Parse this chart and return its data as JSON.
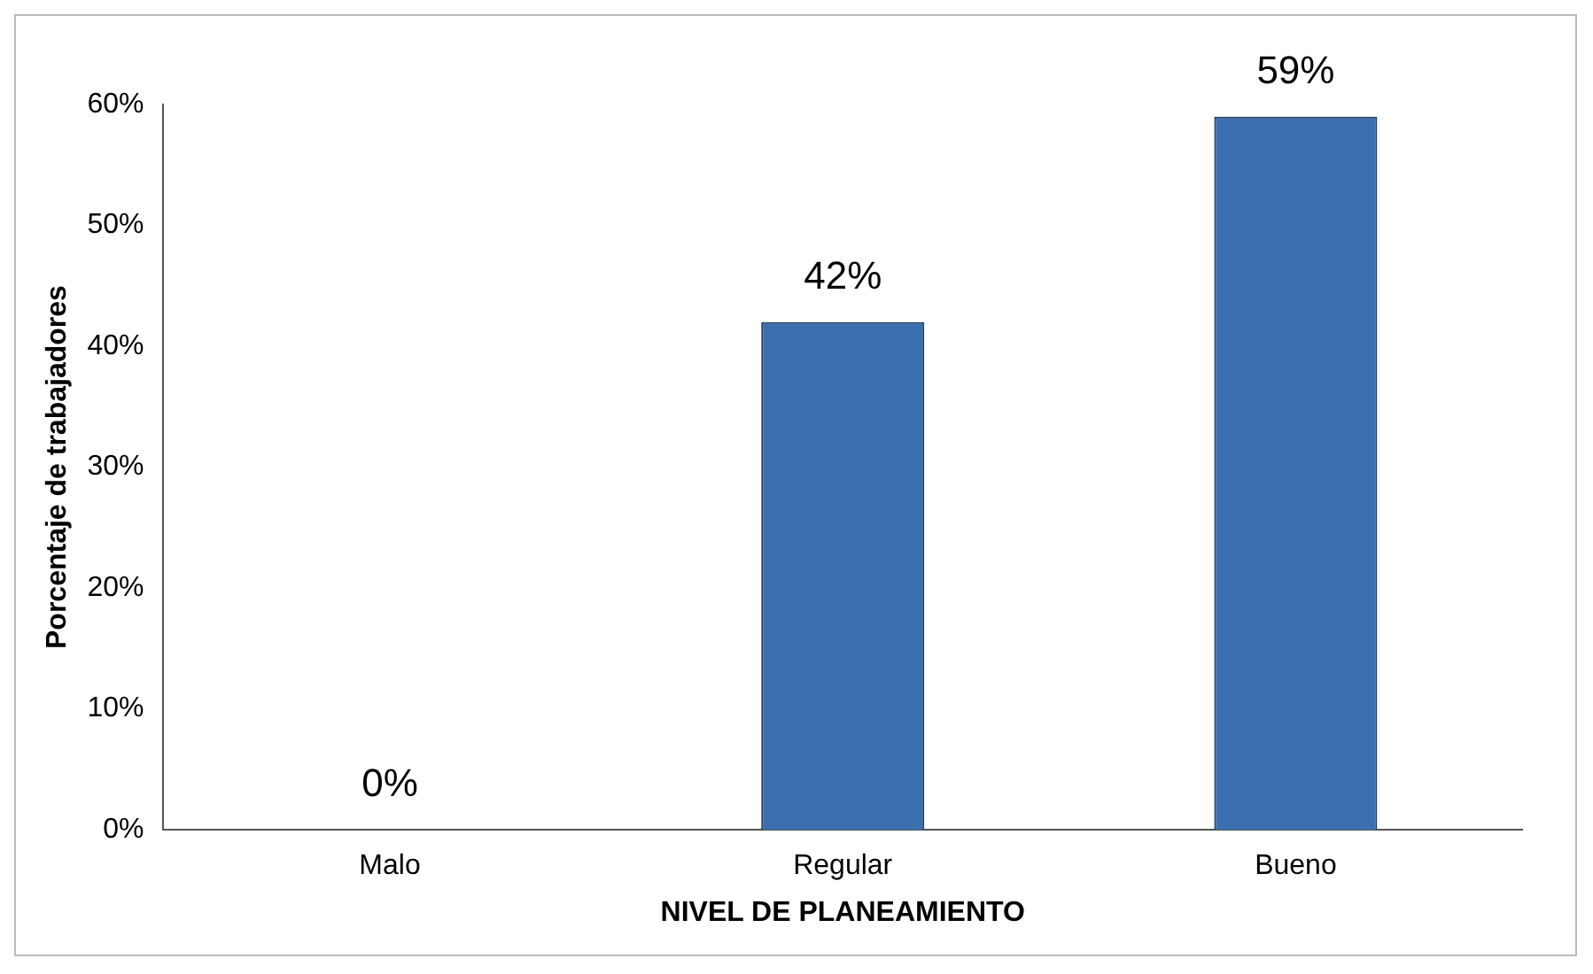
{
  "chart_data": {
    "type": "bar",
    "xlabel": "NIVEL DE PLANEAMIENTO",
    "ylabel": "Porcentaje de trabajadores",
    "categories": [
      "Malo",
      "Regular",
      "Bueno"
    ],
    "values": [
      0,
      42,
      59
    ],
    "color": "#3a6fb0",
    "value_labels": [
      "0%",
      "42%",
      "59%"
    ],
    "ylim": [
      0,
      60
    ],
    "yticks": [
      {
        "value": 0,
        "label": "0%"
      },
      {
        "value": 10,
        "label": "10%"
      },
      {
        "value": 20,
        "label": "20%"
      },
      {
        "value": 30,
        "label": "30%"
      },
      {
        "value": 40,
        "label": "40%"
      },
      {
        "value": 50,
        "label": "50%"
      },
      {
        "value": 60,
        "label": "60%"
      }
    ],
    "grid": false,
    "legend": false
  }
}
